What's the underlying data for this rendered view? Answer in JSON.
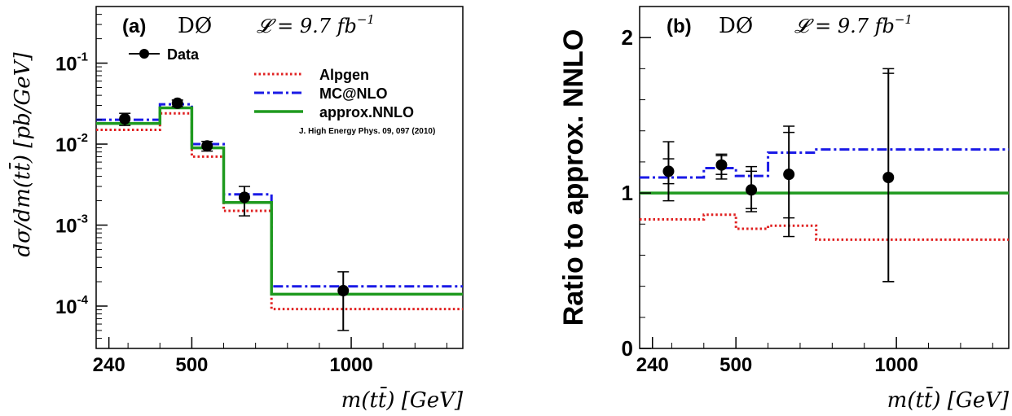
{
  "chart_data": [
    {
      "panel": "(a)",
      "type": "line",
      "panel_label": "(a)",
      "experiment": "DØ",
      "lumi": "𝓛 = 9.7 fb",
      "lumi_exp": "−1",
      "xlabel": "m(tt̄) [GeV]",
      "ylabel": "dσ/dm(tt̄) [pb/GeV]",
      "yscale": "log",
      "ylim": [
        3e-05,
        0.5
      ],
      "xlim": [
        200,
        1350
      ],
      "x_ticks": [
        "240",
        "500",
        "1000"
      ],
      "x_tick_values": [
        240,
        500,
        1000
      ],
      "y_ticks": [
        {
          "base": "10",
          "exp": "-1",
          "value": 0.1
        },
        {
          "base": "10",
          "exp": "-2",
          "value": 0.01
        },
        {
          "base": "10",
          "exp": "-3",
          "value": 0.001
        },
        {
          "base": "10",
          "exp": "-4",
          "value": 0.0001
        }
      ],
      "bin_edges": [
        200,
        400,
        500,
        600,
        750,
        1350
      ],
      "series": [
        {
          "name": "Data",
          "style": "points",
          "color": "#000000",
          "x": [
            290,
            455,
            548,
            665,
            975
          ],
          "y": [
            0.0205,
            0.032,
            0.0095,
            0.0022,
            0.000155
          ],
          "err_low": [
            0.0035,
            0.003,
            0.0013,
            0.0009,
            0.000105
          ],
          "err_high": [
            0.0035,
            0.003,
            0.0013,
            0.0008,
            0.00011
          ]
        },
        {
          "name": "Alpgen",
          "style": "dotted",
          "color": "#e02020",
          "values": [
            0.015,
            0.024,
            0.007,
            0.0015,
            9.2e-05
          ]
        },
        {
          "name": "MC@NLO",
          "style": "dashdot",
          "color": "#1a1ae6",
          "values": [
            0.02,
            0.031,
            0.01,
            0.0024,
            0.000175
          ]
        },
        {
          "name": "approx.NNLO",
          "style": "solid",
          "color": "#1f9a1f",
          "values": [
            0.018,
            0.028,
            0.009,
            0.0019,
            0.00014
          ]
        }
      ],
      "legend_placement": "top-right",
      "reference": "J. High Energy Phys. 09, 097 (2010)"
    },
    {
      "panel": "(b)",
      "type": "line",
      "panel_label": "(b)",
      "experiment": "DØ",
      "lumi": "𝓛 = 9.7 fb",
      "lumi_exp": "−1",
      "xlabel": "m(tt̄) [GeV]",
      "ylabel": "Ratio to approx. NNLO",
      "ylim": [
        0,
        2.2
      ],
      "xlim": [
        200,
        1350
      ],
      "x_ticks": [
        "240",
        "500",
        "1000"
      ],
      "x_tick_values": [
        240,
        500,
        1000
      ],
      "y_ticks": [
        "0",
        "1",
        "2"
      ],
      "y_tick_values": [
        0,
        1,
        2
      ],
      "bin_edges": [
        200,
        400,
        500,
        600,
        750,
        1350
      ],
      "series": [
        {
          "name": "Data",
          "style": "points",
          "color": "#000000",
          "x": [
            290,
            455,
            548,
            665,
            975
          ],
          "y": [
            1.14,
            1.18,
            1.02,
            1.12,
            1.1
          ],
          "err_low_inner": [
            0.08,
            0.06,
            0.12,
            0.28,
            0.67
          ],
          "err_high_inner": [
            0.08,
            0.06,
            0.12,
            0.27,
            0.67
          ],
          "err_low": [
            0.19,
            0.09,
            0.14,
            0.4,
            0.67
          ],
          "err_high": [
            0.19,
            0.07,
            0.15,
            0.31,
            0.7
          ]
        },
        {
          "name": "Alpgen",
          "style": "dotted",
          "color": "#e02020",
          "values": [
            0.83,
            0.86,
            0.77,
            0.79,
            0.7
          ]
        },
        {
          "name": "MC@NLO",
          "style": "dashdot",
          "color": "#1a1ae6",
          "values": [
            1.1,
            1.16,
            1.11,
            1.26,
            1.28
          ]
        },
        {
          "name": "approx.NNLO",
          "style": "solid",
          "color": "#1f9a1f",
          "values": [
            1.0,
            1.0,
            1.0,
            1.0,
            1.0
          ]
        }
      ]
    }
  ]
}
